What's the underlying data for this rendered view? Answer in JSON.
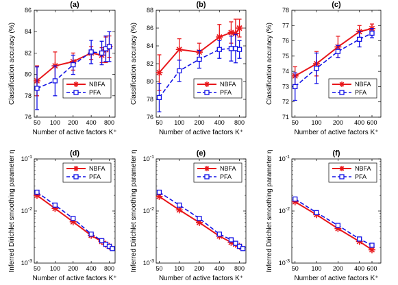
{
  "figure": {
    "nbfa_color": "#e8161a",
    "pfa_color": "#1010e6"
  },
  "chart_data": [
    {
      "panel": "a",
      "type": "line",
      "title": "(a)",
      "xlabel": "Number of active factors K⁺",
      "ylabel": "Classification accuracy (%)",
      "x_ticks": [
        50,
        100,
        200,
        400,
        800
      ],
      "y_ticks": [
        76,
        78,
        80,
        82,
        84,
        86
      ],
      "ylim": [
        76,
        86
      ],
      "xscale": "log",
      "yscale": "linear",
      "xlim": [
        45,
        1000
      ],
      "legend": "lower-right",
      "series": [
        {
          "name": "NBFA",
          "x": [
            50,
            100,
            200,
            400,
            600,
            700,
            800
          ],
          "y": [
            79.4,
            80.8,
            81.2,
            82.0,
            81.8,
            82.3,
            82.6
          ],
          "err": [
            1.4,
            1.3,
            0.8,
            0.6,
            0.7,
            1.2,
            1.0
          ]
        },
        {
          "name": "PFA",
          "x": [
            50,
            100,
            200,
            400,
            600,
            700,
            800
          ],
          "y": [
            78.7,
            79.4,
            80.9,
            82.1,
            82.0,
            82.4,
            82.6
          ],
          "err": [
            2.0,
            1.4,
            0.9,
            1.1,
            1.1,
            1.2,
            1.4
          ]
        }
      ]
    },
    {
      "panel": "b",
      "type": "line",
      "title": "(b)",
      "xlabel": "Number of active factors K⁺",
      "ylabel": "Classification accuracy (%)",
      "x_ticks": [
        50,
        100,
        200,
        400,
        800
      ],
      "y_ticks": [
        76,
        78,
        80,
        82,
        84,
        86,
        88
      ],
      "ylim": [
        76,
        88
      ],
      "xscale": "log",
      "yscale": "linear",
      "xlim": [
        45,
        1000
      ],
      "legend": "lower-right",
      "series": [
        {
          "name": "NBFA",
          "x": [
            50,
            100,
            200,
            400,
            600,
            700,
            800
          ],
          "y": [
            81.0,
            83.6,
            83.3,
            85.0,
            85.5,
            85.4,
            86.0
          ],
          "err": [
            2.0,
            1.2,
            1.0,
            1.4,
            1.2,
            1.6,
            1.0
          ]
        },
        {
          "name": "PFA",
          "x": [
            50,
            100,
            200,
            400,
            600,
            700,
            800
          ],
          "y": [
            78.2,
            81.2,
            82.5,
            83.6,
            83.7,
            83.7,
            83.6
          ],
          "err": [
            1.6,
            1.2,
            1.0,
            1.0,
            1.4,
            1.6,
            1.0
          ]
        }
      ]
    },
    {
      "panel": "c",
      "type": "line",
      "title": "(c)",
      "xlabel": "Number of active factors K⁺",
      "ylabel": "Classification accuracy (%)",
      "x_ticks": [
        50,
        100,
        200,
        400,
        600
      ],
      "y_ticks": [
        71,
        72,
        73,
        74,
        75,
        76,
        77,
        78
      ],
      "ylim": [
        71,
        78
      ],
      "xscale": "log",
      "yscale": "linear",
      "xlim": [
        45,
        800
      ],
      "legend": "lower-right",
      "series": [
        {
          "name": "NBFA",
          "x": [
            50,
            100,
            200,
            400,
            600
          ],
          "y": [
            73.7,
            74.5,
            75.6,
            76.6,
            76.8
          ],
          "err": [
            0.6,
            0.8,
            0.7,
            0.4,
            0.3
          ]
        },
        {
          "name": "PFA",
          "x": [
            50,
            100,
            200,
            400,
            600
          ],
          "y": [
            73.0,
            74.2,
            75.3,
            76.1,
            76.5
          ],
          "err": [
            0.9,
            1.0,
            0.4,
            0.5,
            0.3
          ]
        }
      ]
    },
    {
      "panel": "d",
      "type": "line",
      "title": "(d)",
      "xlabel": "Number of active factors K⁺",
      "ylabel": "Inferred Dirichlet smoothing parameter η",
      "x_ticks": [
        50,
        100,
        200,
        400,
        800
      ],
      "y_ticks": [
        0.001,
        0.01,
        0.1
      ],
      "ylim": [
        0.001,
        0.1
      ],
      "xscale": "log",
      "yscale": "log",
      "xlim": [
        45,
        1000
      ],
      "legend": "top-right",
      "series": [
        {
          "name": "NBFA",
          "x": [
            50,
            100,
            200,
            400,
            600,
            700,
            800
          ],
          "y": [
            0.02,
            0.0112,
            0.0062,
            0.0034,
            0.0026,
            0.0023,
            0.0021
          ]
        },
        {
          "name": "PFA",
          "x": [
            50,
            100,
            200,
            400,
            600,
            700,
            800,
            900
          ],
          "y": [
            0.023,
            0.013,
            0.0072,
            0.0036,
            0.0027,
            0.0023,
            0.0021,
            0.0019
          ]
        }
      ]
    },
    {
      "panel": "e",
      "type": "line",
      "title": "(e)",
      "xlabel": "Number of active factors K⁺",
      "ylabel": "Inferred Dirichlet smoothing parameter η",
      "x_ticks": [
        50,
        100,
        200,
        400,
        800
      ],
      "y_ticks": [
        0.001,
        0.01,
        0.1
      ],
      "ylim": [
        0.001,
        0.1
      ],
      "xscale": "log",
      "yscale": "log",
      "xlim": [
        45,
        1000
      ],
      "legend": "top-right",
      "series": [
        {
          "name": "NBFA",
          "x": [
            50,
            100,
            200,
            400,
            600,
            700,
            800
          ],
          "y": [
            0.019,
            0.0105,
            0.006,
            0.0033,
            0.0025,
            0.0023,
            0.0021
          ]
        },
        {
          "name": "PFA",
          "x": [
            50,
            100,
            200,
            400,
            600,
            700,
            800,
            900
          ],
          "y": [
            0.023,
            0.013,
            0.0072,
            0.0036,
            0.0028,
            0.0024,
            0.0021,
            0.0019
          ]
        }
      ]
    },
    {
      "panel": "f",
      "type": "line",
      "title": "(f)",
      "xlabel": "Number of active factors K⁺",
      "ylabel": "Inferred Dirichlet smoothing parameter η",
      "x_ticks": [
        50,
        100,
        200,
        400,
        600
      ],
      "y_ticks": [
        0.001,
        0.01,
        0.1
      ],
      "ylim": [
        0.001,
        0.1
      ],
      "xscale": "log",
      "yscale": "log",
      "xlim": [
        45,
        800
      ],
      "legend": "top-right",
      "series": [
        {
          "name": "NBFA",
          "x": [
            50,
            100,
            200,
            400,
            600
          ],
          "y": [
            0.015,
            0.0085,
            0.0046,
            0.0026,
            0.0018
          ]
        },
        {
          "name": "PFA",
          "x": [
            50,
            100,
            200,
            400,
            600
          ],
          "y": [
            0.017,
            0.0093,
            0.0053,
            0.0029,
            0.0022
          ]
        }
      ]
    }
  ]
}
